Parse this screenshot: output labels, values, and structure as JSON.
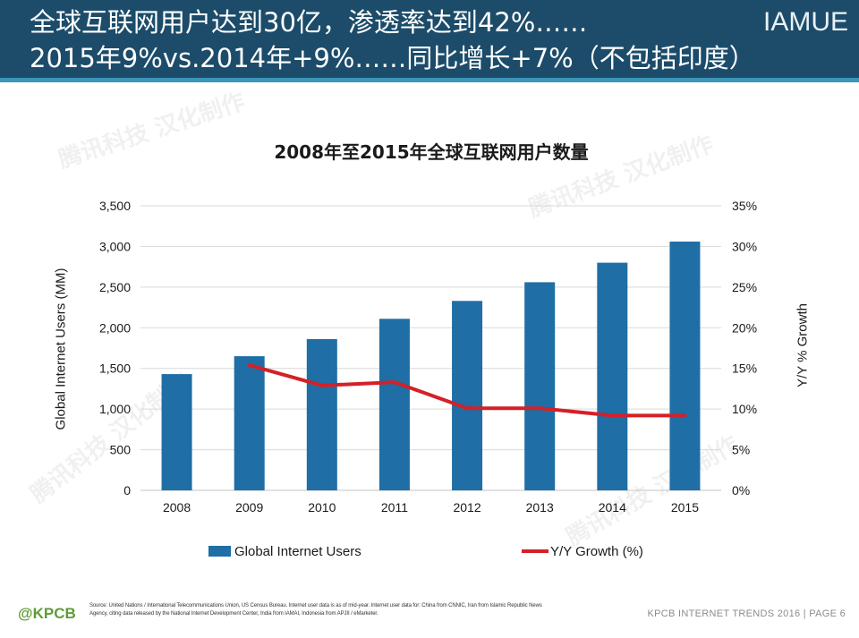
{
  "header": {
    "title_line1": "全球互联网用户达到30亿，渗透率达到42%……",
    "title_line2": "2015年9%vs.2014年+9%……同比增长+7%（不包括印度）",
    "brand": "IAMUE"
  },
  "watermark": {
    "text": "腾讯科技 汉化制作"
  },
  "chart_data": {
    "type": "bar",
    "title": "2008年至2015年全球互联网用户数量",
    "categories": [
      "2008",
      "2009",
      "2010",
      "2011",
      "2012",
      "2013",
      "2014",
      "2015"
    ],
    "series": [
      {
        "name": "Global Internet Users",
        "type": "bar",
        "axis": "left",
        "color": "#1f6ea6",
        "values": [
          1430,
          1650,
          1860,
          2110,
          2330,
          2560,
          2800,
          3060
        ]
      },
      {
        "name": "Y/Y Growth (%)",
        "type": "line",
        "axis": "right",
        "color": "#d42027",
        "values": [
          null,
          15.4,
          12.9,
          13.3,
          10.1,
          10.1,
          9.2,
          9.2
        ]
      }
    ],
    "ylabel": "Global Internet Users (MM)",
    "y2label": "Y/Y % Growth",
    "ylim": [
      0,
      3500
    ],
    "y2lim": [
      0,
      35
    ],
    "y_ticks": [
      0,
      500,
      1000,
      1500,
      2000,
      2500,
      3000,
      3500
    ],
    "y_tick_labels": [
      "0",
      "500",
      "1,000",
      "1,500",
      "2,000",
      "2,500",
      "3,000",
      "3,500"
    ],
    "y2_ticks": [
      0,
      5,
      10,
      15,
      20,
      25,
      30,
      35
    ],
    "y2_tick_labels": [
      "0%",
      "5%",
      "10%",
      "15%",
      "20%",
      "25%",
      "30%",
      "35%"
    ],
    "grid": true,
    "legend": "bottom"
  },
  "footer": {
    "logo": "@KPCB",
    "source_line1": "Source: United Nations / International Telecommunications Union, US Census Bureau. Internet user data is as of mid-year. Internet user data for: China from CNNIC, Iran from Islamic Republic News",
    "source_line2": "Agency, citing data released by the National Internet Development Center, India from IAMAI, Indonesia from APJII / eMarketer.",
    "page_label": "KPCB INTERNET TRENDS 2016 | PAGE 6"
  },
  "colors": {
    "header_bg": "#1c4c6a",
    "header_stripe": "#3b97b9",
    "logo_green": "#5e9c36"
  }
}
